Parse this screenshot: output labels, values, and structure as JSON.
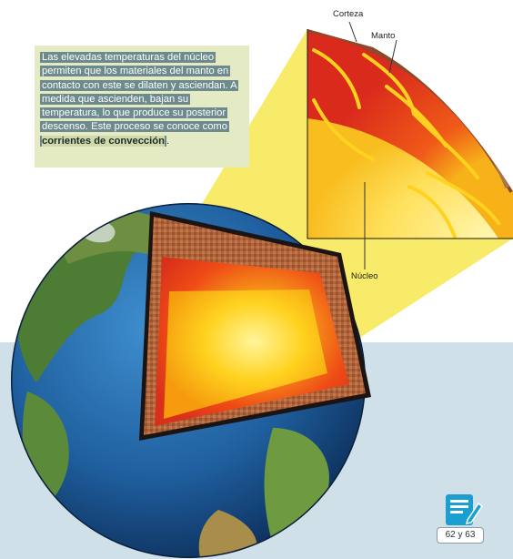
{
  "callout": {
    "text_before": "Las elevadas temperaturas del núcleo permiten que los materiales del manto en contacto con este se dilaten y asciendan. A medida que ascienden, bajan su temperatura, lo que produce su posterior descenso. Este proceso se conoce como ",
    "text_bold": "corrientes de convección",
    "text_after": "."
  },
  "labels": {
    "corteza": "Corteza",
    "manto": "Manto",
    "nucleo": "Núcleo"
  },
  "badge": {
    "icon": "notebook-pencil-icon",
    "pages": "62 y 63"
  },
  "colors": {
    "band": "#cfe0e9",
    "callout_bg": "#e4eac3",
    "text_highlight": "#6d8a8d",
    "badge_icon": "#1a9fd0"
  }
}
